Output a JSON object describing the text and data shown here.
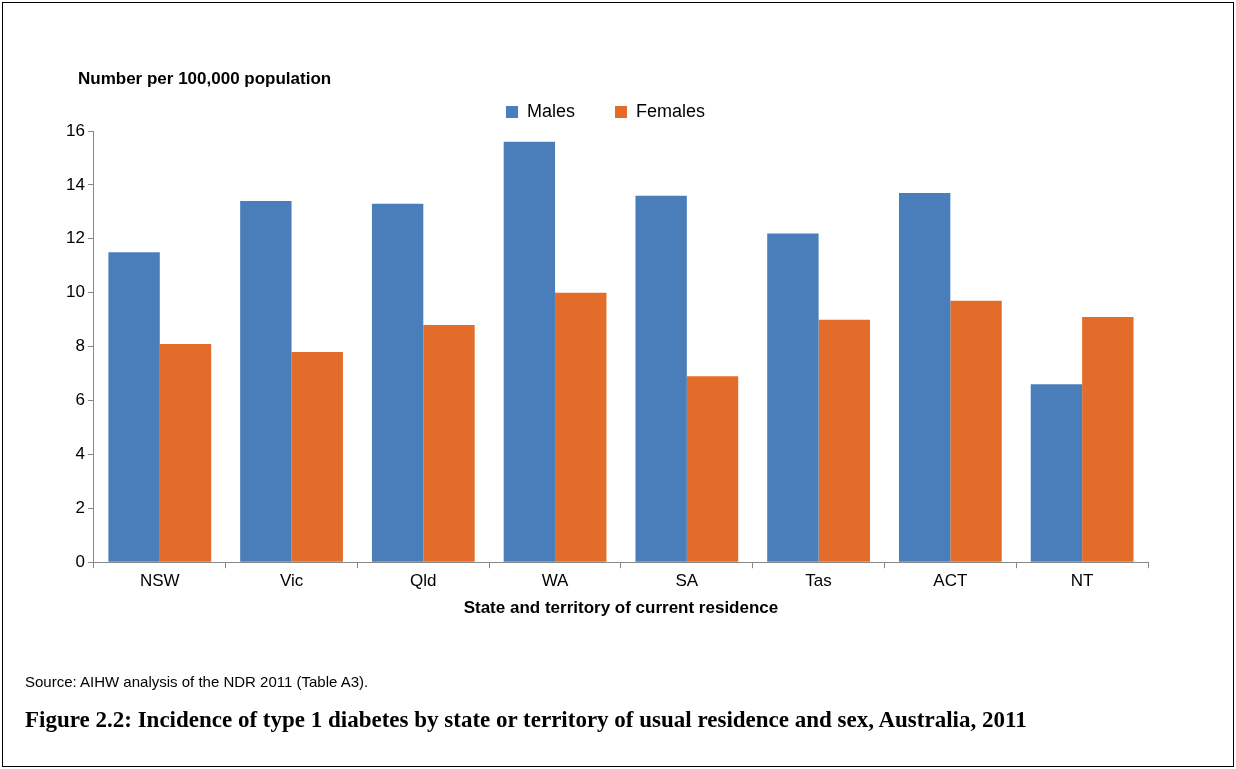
{
  "chart_data": {
    "type": "bar",
    "title": "Figure 2.2: Incidence of type 1 diabetes by state or territory of usual residence and sex, Australia, 2011",
    "xlabel": "State and territory of current residence",
    "ylabel": "Number per 100,000 population",
    "annotations": [
      "Source: AIHW analysis of the NDR 2011 (Table A3)."
    ],
    "categories": [
      "NSW",
      "Vic",
      "Qld",
      "WA",
      "SA",
      "Tas",
      "ACT",
      "NT"
    ],
    "series": [
      {
        "name": "Males",
        "color": "#4a7ebb",
        "values": [
          11.5,
          13.4,
          13.3,
          15.6,
          13.6,
          12.2,
          13.7,
          6.6
        ]
      },
      {
        "name": "Females",
        "color": "#e46c2a",
        "values": [
          8.1,
          7.8,
          8.8,
          10.0,
          6.9,
          9.0,
          9.7,
          9.1
        ]
      }
    ],
    "ylim": [
      0,
      16
    ],
    "yticks": [
      0,
      2,
      4,
      6,
      8,
      10,
      12,
      14,
      16
    ],
    "grid": false,
    "legend": "top"
  }
}
